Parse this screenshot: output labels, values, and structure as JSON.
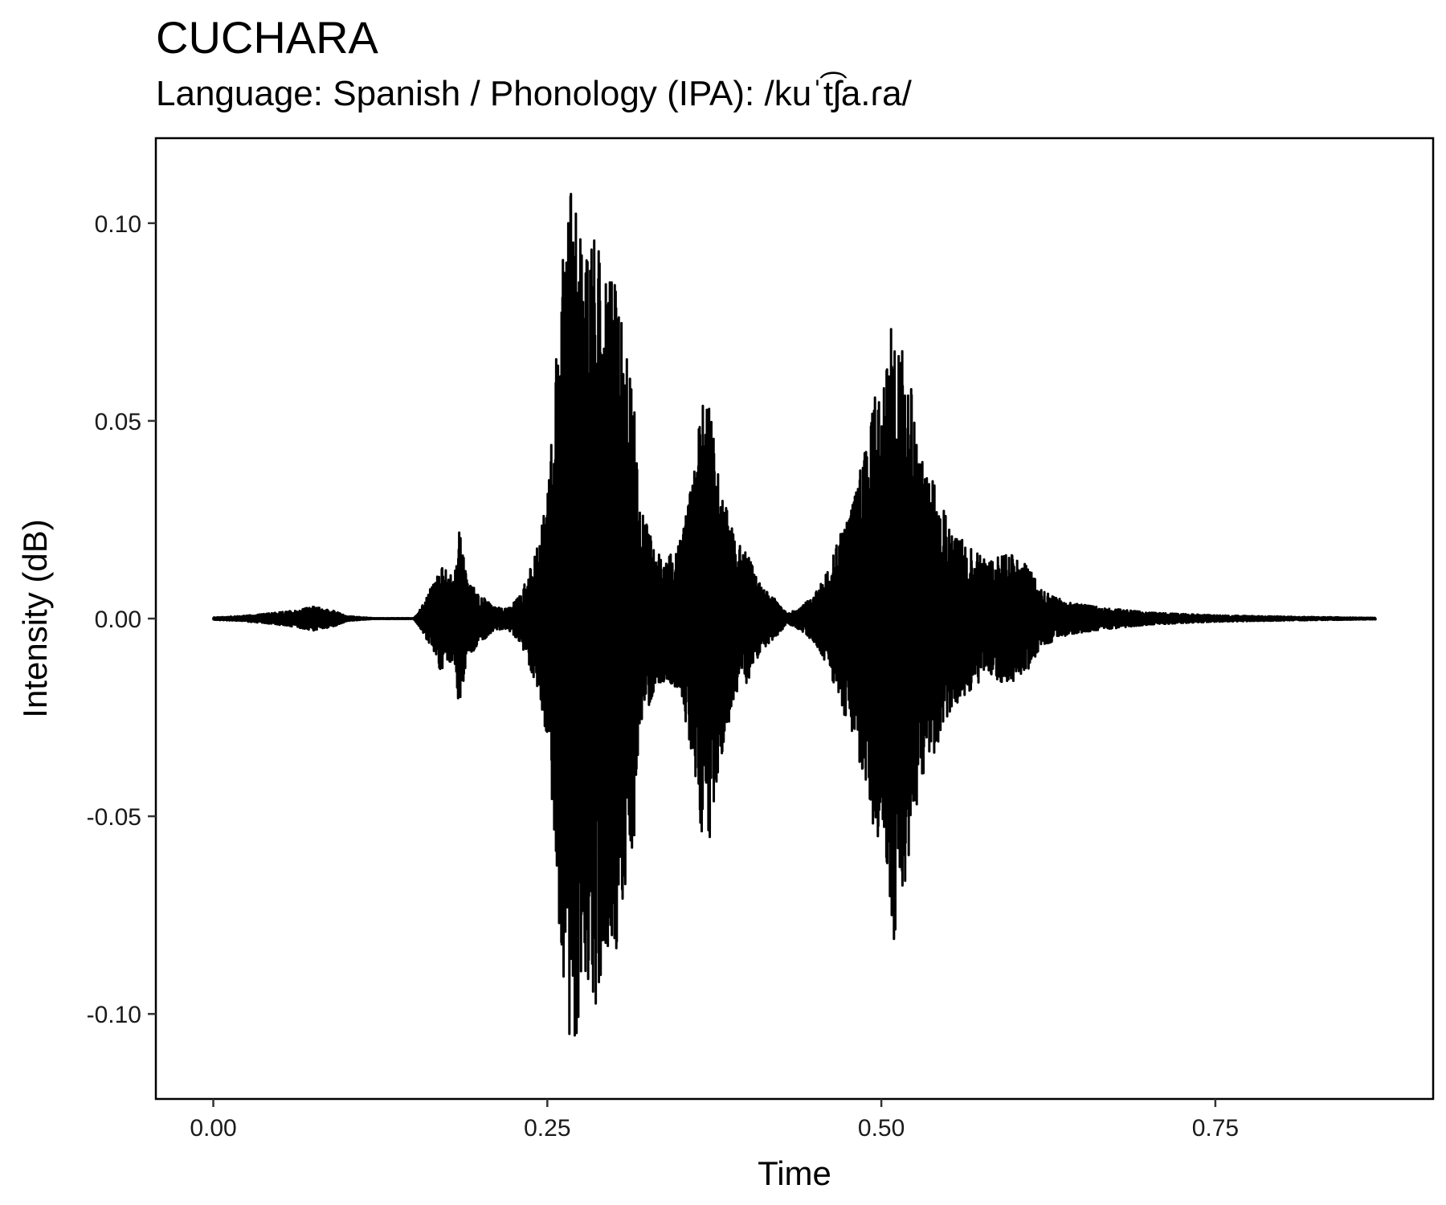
{
  "chart_data": {
    "type": "line",
    "title": "CUCHARA",
    "subtitle": "Language: Spanish / Phonology (IPA): /kuˈt͡ʃa.ɾa/",
    "xlabel": "Time",
    "ylabel": "Intensity (dB)",
    "xlim": [
      -0.043,
      0.913
    ],
    "ylim": [
      -0.1215,
      0.1215
    ],
    "x_ticks": [
      0.0,
      0.25,
      0.5,
      0.75
    ],
    "x_tick_labels": [
      "0.00",
      "0.25",
      "0.50",
      "0.75"
    ],
    "y_ticks": [
      0.1,
      0.05,
      0.0,
      -0.05,
      -0.1
    ],
    "y_tick_labels": [
      "0.10",
      "0.05",
      "0.00",
      "-0.05",
      "-0.10"
    ],
    "grid": false,
    "line_color": "#000000",
    "series": [
      {
        "x": [
          0.0,
          0.02,
          0.04,
          0.06,
          0.075,
          0.09,
          0.1,
          0.12,
          0.15,
          0.158,
          0.163,
          0.17,
          0.175,
          0.18,
          0.184,
          0.19,
          0.195,
          0.2,
          0.21,
          0.22,
          0.23,
          0.24,
          0.25,
          0.255,
          0.26,
          0.265,
          0.268,
          0.27,
          0.275,
          0.28,
          0.285,
          0.29,
          0.295,
          0.3,
          0.305,
          0.31,
          0.315,
          0.32,
          0.33,
          0.34,
          0.35,
          0.36,
          0.365,
          0.37,
          0.375,
          0.38,
          0.39,
          0.4,
          0.41,
          0.42,
          0.43,
          0.44,
          0.45,
          0.46,
          0.47,
          0.48,
          0.49,
          0.495,
          0.5,
          0.505,
          0.51,
          0.515,
          0.52,
          0.525,
          0.53,
          0.54,
          0.55,
          0.56,
          0.57,
          0.58,
          0.59,
          0.6,
          0.61,
          0.62,
          0.64,
          0.66,
          0.7,
          0.75,
          0.8,
          0.87
        ],
        "amplitude": [
          0.0003,
          0.0006,
          0.0012,
          0.002,
          0.003,
          0.002,
          0.0006,
          0.0001,
          0.0001,
          0.004,
          0.008,
          0.013,
          0.012,
          0.01,
          0.0235,
          0.009,
          0.008,
          0.006,
          0.003,
          0.0025,
          0.006,
          0.015,
          0.03,
          0.056,
          0.085,
          0.102,
          0.108,
          0.111,
          0.095,
          0.09,
          0.1,
          0.09,
          0.085,
          0.085,
          0.08,
          0.064,
          0.055,
          0.028,
          0.018,
          0.015,
          0.02,
          0.037,
          0.053,
          0.06,
          0.045,
          0.035,
          0.02,
          0.016,
          0.008,
          0.005,
          0.0012,
          0.003,
          0.006,
          0.012,
          0.022,
          0.032,
          0.045,
          0.056,
          0.054,
          0.065,
          0.083,
          0.068,
          0.065,
          0.05,
          0.04,
          0.034,
          0.024,
          0.02,
          0.017,
          0.014,
          0.016,
          0.016,
          0.013,
          0.007,
          0.004,
          0.003,
          0.0015,
          0.0008,
          0.0005,
          0.0002
        ]
      }
    ]
  }
}
